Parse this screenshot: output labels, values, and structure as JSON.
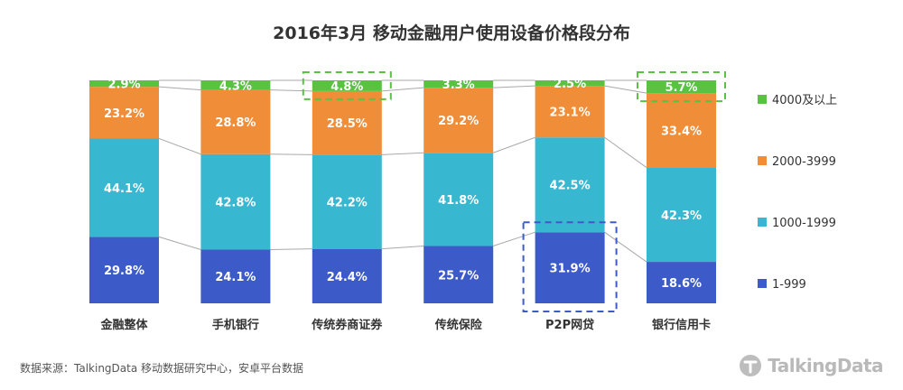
{
  "chart_data": {
    "type": "bar",
    "stacked": true,
    "percent": true,
    "title": "2016年3月 移动金融用户使用设备价格段分布",
    "categories": [
      "金融整体",
      "手机银行",
      "传统券商证券",
      "传统保险",
      "P2P网贷",
      "银行信用卡"
    ],
    "series": [
      {
        "name": "1-999",
        "color": "#3d5bc8",
        "values": [
          29.8,
          24.1,
          24.4,
          25.7,
          31.9,
          18.6
        ]
      },
      {
        "name": "1000-1999",
        "color": "#38b7d0",
        "values": [
          44.1,
          42.8,
          42.2,
          41.8,
          42.5,
          42.3
        ]
      },
      {
        "name": "2000-3999",
        "color": "#f08d38",
        "values": [
          23.2,
          28.8,
          28.5,
          29.2,
          23.1,
          33.4
        ]
      },
      {
        "name": "4000及以上",
        "color": "#5ac142",
        "values": [
          2.9,
          4.3,
          4.8,
          3.3,
          2.5,
          5.7
        ]
      }
    ],
    "value_suffix": "%",
    "ylim": [
      0,
      100
    ],
    "legend_position": "right",
    "connector_lines": true,
    "highlights": [
      {
        "category": "传统券商证券",
        "series": "4000及以上",
        "color": "#5ac142"
      },
      {
        "category": "银行信用卡",
        "series": "4000及以上",
        "color": "#5ac142"
      },
      {
        "category": "P2P网贷",
        "series": "1-999",
        "color": "#3d5bc8"
      }
    ]
  },
  "footer": {
    "source": "数据来源：TalkingData 移动数据研究中心，安卓平台数据",
    "brand": "TalkingData",
    "brand_icon": "talkingdata-logo-icon"
  }
}
